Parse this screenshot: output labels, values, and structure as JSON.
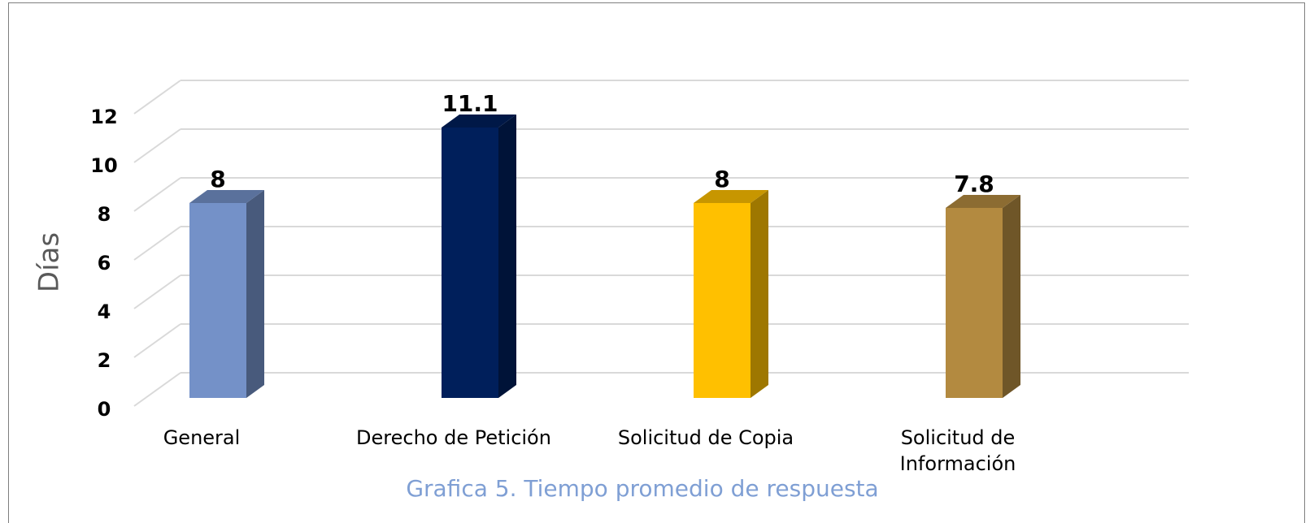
{
  "chart_data": {
    "type": "bar3d",
    "title": "Grafica 5. Tiempo promedio de respuesta",
    "y_label": "Días",
    "categories": [
      "General",
      "Derecho de Petición",
      "Solicitud de Copia",
      "Solicitud de Información"
    ],
    "values": [
      8,
      11.1,
      8,
      7.8
    ],
    "colors": [
      "#7491c8",
      "#001f5b",
      "#ffc000",
      "#b38a40"
    ],
    "ylim": [
      0,
      12
    ],
    "yticks": [
      0,
      2,
      4,
      6,
      8,
      10,
      12
    ],
    "grid": true
  }
}
